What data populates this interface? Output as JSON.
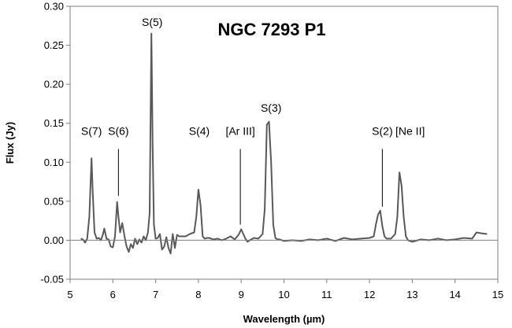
{
  "chart_data": {
    "type": "line",
    "title": "NGC 7293 P1",
    "xlabel": "Wavelength (µm)",
    "ylabel": "Flux (Jy)",
    "xlim": [
      5,
      15
    ],
    "ylim": [
      -0.05,
      0.3
    ],
    "xticks": [
      5,
      6,
      7,
      8,
      9,
      10,
      11,
      12,
      13,
      14,
      15
    ],
    "xtick_labels": [
      "5",
      "6",
      "7",
      "8",
      "9",
      "10",
      "11",
      "12",
      "13",
      "14",
      "15"
    ],
    "yticks": [
      -0.05,
      0,
      0.05,
      0.1,
      0.15,
      0.2,
      0.25,
      0.3
    ],
    "ytick_labels": [
      "-0.05",
      "0.00",
      "0.05",
      "0.10",
      "0.15",
      "0.20",
      "0.25",
      "0.30"
    ],
    "grid": false,
    "line_color": "#595959",
    "series": [
      {
        "x": [
          5.25,
          5.3,
          5.35,
          5.4,
          5.45,
          5.5,
          5.53,
          5.57,
          5.62,
          5.67,
          5.72,
          5.77,
          5.8,
          5.85,
          5.9,
          5.95,
          6.0,
          6.05,
          6.1,
          6.13,
          6.17,
          6.22,
          6.25,
          6.28,
          6.32,
          6.37,
          6.42,
          6.47,
          6.52,
          6.57,
          6.62,
          6.67,
          6.72,
          6.77,
          6.82,
          6.86,
          6.9,
          6.93,
          6.96,
          7.0,
          7.05,
          7.1,
          7.15,
          7.2,
          7.25,
          7.3,
          7.35,
          7.4,
          7.45,
          7.5,
          7.55,
          7.6,
          7.7,
          7.8,
          7.9,
          7.95,
          8.0,
          8.05,
          8.1,
          8.15,
          8.2,
          8.25,
          8.35,
          8.45,
          8.55,
          8.65,
          8.75,
          8.85,
          8.95,
          9.0,
          9.05,
          9.1,
          9.15,
          9.2,
          9.3,
          9.4,
          9.5,
          9.55,
          9.6,
          9.65,
          9.7,
          9.75,
          9.8,
          9.85,
          9.9,
          10.0,
          10.2,
          10.4,
          10.6,
          10.8,
          11.0,
          11.2,
          11.4,
          11.6,
          11.8,
          12.0,
          12.1,
          12.15,
          12.2,
          12.25,
          12.3,
          12.35,
          12.4,
          12.45,
          12.5,
          12.6,
          12.65,
          12.7,
          12.75,
          12.8,
          12.85,
          12.9,
          12.95,
          13.0,
          13.2,
          13.4,
          13.6,
          13.8,
          14.0,
          14.2,
          14.4,
          14.5,
          14.6,
          14.75
        ],
        "y": [
          0.002,
          0.001,
          -0.003,
          0.002,
          0.03,
          0.105,
          0.06,
          0.01,
          0.002,
          0.003,
          0.0,
          0.008,
          0.015,
          0.002,
          0.001,
          -0.008,
          -0.009,
          0.005,
          0.049,
          0.03,
          0.01,
          0.022,
          0.012,
          0.003,
          -0.008,
          -0.015,
          -0.005,
          -0.01,
          0.002,
          -0.005,
          0.001,
          -0.003,
          0.005,
          0.0,
          0.01,
          0.035,
          0.265,
          0.12,
          0.02,
          0.002,
          0.003,
          0.008,
          -0.012,
          -0.008,
          0.004,
          -0.01,
          -0.017,
          0.008,
          -0.01,
          0.007,
          0.005,
          0.005,
          0.005,
          0.008,
          0.01,
          0.03,
          0.065,
          0.045,
          0.005,
          0.002,
          0.003,
          0.003,
          0.001,
          0.002,
          0.0,
          0.002,
          0.005,
          0.001,
          0.008,
          0.014,
          0.008,
          0.002,
          -0.002,
          0.0,
          0.003,
          0.002,
          0.008,
          0.04,
          0.148,
          0.152,
          0.1,
          0.02,
          0.003,
          0.001,
          0.001,
          -0.001,
          0.0,
          -0.001,
          0.001,
          0.0,
          0.002,
          -0.001,
          0.003,
          0.001,
          0.002,
          0.003,
          0.005,
          0.02,
          0.033,
          0.038,
          0.018,
          0.005,
          0.002,
          0.002,
          0.002,
          0.008,
          0.03,
          0.087,
          0.07,
          0.03,
          0.005,
          0.0,
          -0.001,
          -0.002,
          0.001,
          0.0,
          0.002,
          0.0,
          0.001,
          0.003,
          0.002,
          0.01,
          0.009,
          0.008
        ]
      }
    ],
    "annotations": [
      {
        "text": "S(7)",
        "x": 5.5,
        "y_text": 0.135,
        "line": false
      },
      {
        "text": "S(6)",
        "x": 6.13,
        "y_text": 0.135,
        "line": true,
        "line_y": [
          0.117,
          0.057
        ]
      },
      {
        "text": "S(5)",
        "x": 6.92,
        "y_text": 0.275,
        "line": false
      },
      {
        "text": "S(4)",
        "x": 8.02,
        "y_text": 0.135,
        "line": false
      },
      {
        "text": "[Ar III]",
        "x": 8.98,
        "y_text": 0.135,
        "line": true,
        "line_y": [
          0.117,
          0.02
        ]
      },
      {
        "text": "S(3)",
        "x": 9.7,
        "y_text": 0.165,
        "line": false
      },
      {
        "text": "S(2)",
        "x": 12.3,
        "y_text": 0.135,
        "line": true,
        "line_y": [
          0.117,
          0.043
        ]
      },
      {
        "text": "[Ne II]",
        "x": 12.95,
        "y_text": 0.135,
        "line": false
      }
    ]
  }
}
